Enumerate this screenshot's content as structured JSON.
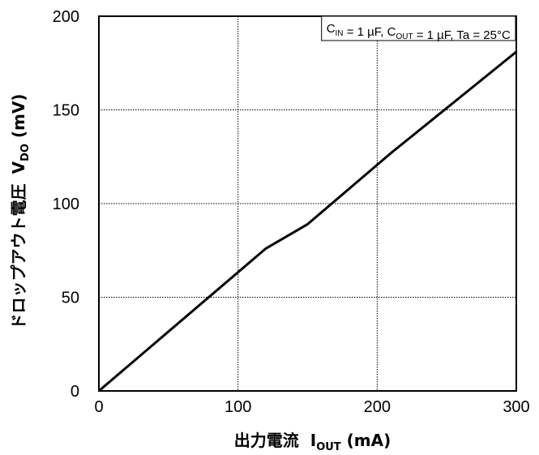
{
  "chart_data": {
    "type": "line",
    "title": "",
    "xlabel": {
      "main": "出力電流",
      "symbol": "I",
      "sub": "OUT",
      "unit": " (mA)"
    },
    "ylabel": {
      "main": "ドロップアウト電圧",
      "symbol": "V",
      "sub": "DO",
      "unit": " (mV)"
    },
    "xlim": [
      0,
      300
    ],
    "ylim": [
      0,
      200
    ],
    "xticks": [
      0,
      100,
      200,
      300
    ],
    "yticks": [
      0,
      50,
      100,
      150,
      200
    ],
    "grid": true,
    "line_color": "#000000",
    "annotation": {
      "parts": [
        {
          "text": "C",
          "sub": "IN"
        },
        {
          "text": " = 1 µF, C",
          "sub": "OUT"
        },
        {
          "text": " = 1 µF, Ta = 25°C",
          "sub": ""
        }
      ],
      "placement": "top-right"
    },
    "series": [
      {
        "x": [
          0,
          30,
          60,
          90,
          120,
          150,
          180,
          210,
          240,
          270,
          300
        ],
        "y": [
          0,
          19,
          38,
          57,
          76,
          89,
          108,
          127,
          145,
          163,
          181
        ]
      }
    ]
  }
}
